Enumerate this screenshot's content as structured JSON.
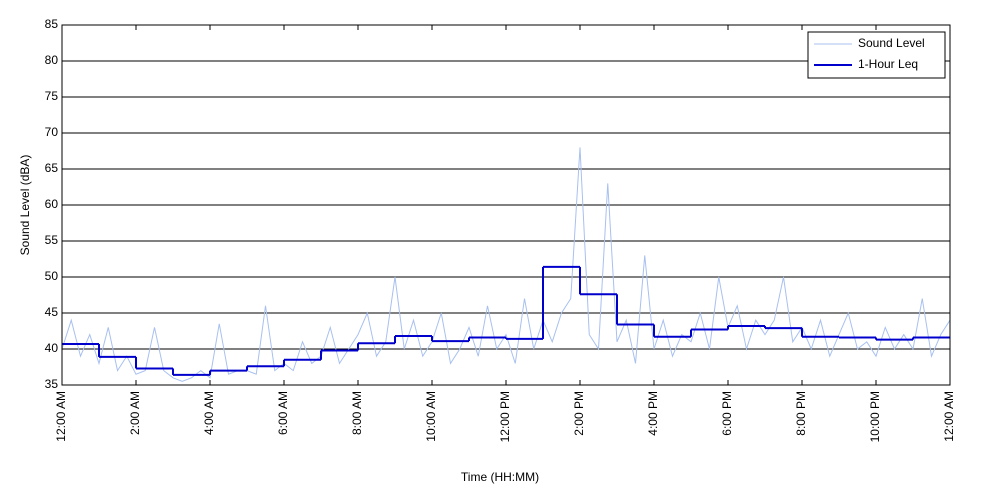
{
  "chart_data": {
    "type": "line",
    "x_label": "Time (HH:MM)",
    "y_label": "Sound Level (dBA)",
    "xlim": [
      0,
      24
    ],
    "ylim": [
      35,
      85
    ],
    "yticks": [
      35,
      40,
      45,
      50,
      55,
      60,
      65,
      70,
      75,
      80,
      85
    ],
    "xticks": [
      {
        "value": 0,
        "label": "12:00 AM"
      },
      {
        "value": 2,
        "label": "2:00 AM"
      },
      {
        "value": 4,
        "label": "4:00 AM"
      },
      {
        "value": 6,
        "label": "6:00 AM"
      },
      {
        "value": 8,
        "label": "8:00 AM"
      },
      {
        "value": 10,
        "label": "10:00 AM"
      },
      {
        "value": 12,
        "label": "12:00 PM"
      },
      {
        "value": 14,
        "label": "2:00 PM"
      },
      {
        "value": 16,
        "label": "4:00 PM"
      },
      {
        "value": 18,
        "label": "6:00 PM"
      },
      {
        "value": 20,
        "label": "8:00 PM"
      },
      {
        "value": 22,
        "label": "10:00 PM"
      },
      {
        "value": 24,
        "label": "12:00 AM"
      }
    ],
    "grid": "y",
    "legend": "upper right",
    "series": [
      {
        "name": "Sound Level",
        "color": "#a8c0f0",
        "step": false,
        "x": [
          0,
          0.25,
          0.5,
          0.75,
          1,
          1.25,
          1.5,
          1.75,
          2,
          2.25,
          2.5,
          2.75,
          3,
          3.25,
          3.5,
          3.75,
          4,
          4.25,
          4.5,
          4.75,
          5,
          5.25,
          5.5,
          5.75,
          6,
          6.25,
          6.5,
          6.75,
          7,
          7.25,
          7.5,
          7.75,
          8,
          8.25,
          8.5,
          8.75,
          9,
          9.25,
          9.5,
          9.75,
          10,
          10.25,
          10.5,
          10.75,
          11,
          11.25,
          11.5,
          11.75,
          12,
          12.25,
          12.5,
          12.75,
          13,
          13.25,
          13.5,
          13.75,
          14,
          14.25,
          14.5,
          14.75,
          15,
          15.25,
          15.5,
          15.75,
          16,
          16.25,
          16.5,
          16.75,
          17,
          17.25,
          17.5,
          17.75,
          18,
          18.25,
          18.5,
          18.75,
          19,
          19.25,
          19.5,
          19.75,
          20,
          20.25,
          20.5,
          20.75,
          21,
          21.25,
          21.5,
          21.75,
          22,
          22.25,
          22.5,
          22.75,
          23,
          23.25,
          23.5,
          23.75,
          24
        ],
        "values": [
          40,
          44,
          39,
          42,
          38,
          43,
          37,
          39,
          36.5,
          37,
          43,
          37,
          36,
          35.5,
          36,
          37,
          36,
          43.5,
          36.5,
          37,
          37,
          36.5,
          46,
          37,
          38,
          37,
          41,
          38,
          39,
          43,
          38,
          40,
          42,
          45,
          39,
          41,
          50,
          40,
          44,
          39,
          41,
          45,
          38,
          40,
          43,
          39,
          46,
          40,
          42,
          38,
          47,
          40,
          44,
          41,
          45,
          47,
          68,
          42,
          40,
          63,
          41,
          44,
          38,
          53,
          40,
          44,
          39,
          42,
          41,
          45,
          40,
          50,
          43,
          46,
          40,
          44,
          42,
          44,
          50,
          41,
          43,
          40,
          44,
          39,
          42,
          45,
          40,
          41,
          39,
          43,
          40,
          42,
          40,
          47,
          39,
          42,
          44
        ]
      },
      {
        "name": "1-Hour Leq",
        "color": "#0000cc",
        "step": true,
        "x": [
          0,
          1,
          2,
          3,
          4,
          5,
          6,
          7,
          8,
          9,
          10,
          11,
          12,
          13,
          14,
          15,
          16,
          17,
          18,
          19,
          20,
          21,
          22,
          23
        ],
        "values": [
          40.7,
          38.9,
          37.3,
          36.4,
          37.0,
          37.6,
          38.5,
          39.8,
          40.8,
          41.8,
          41.1,
          41.6,
          41.4,
          51.4,
          47.6,
          43.4,
          41.7,
          42.7,
          43.2,
          42.9,
          41.7,
          41.6,
          41.3,
          41.6
        ]
      }
    ]
  }
}
